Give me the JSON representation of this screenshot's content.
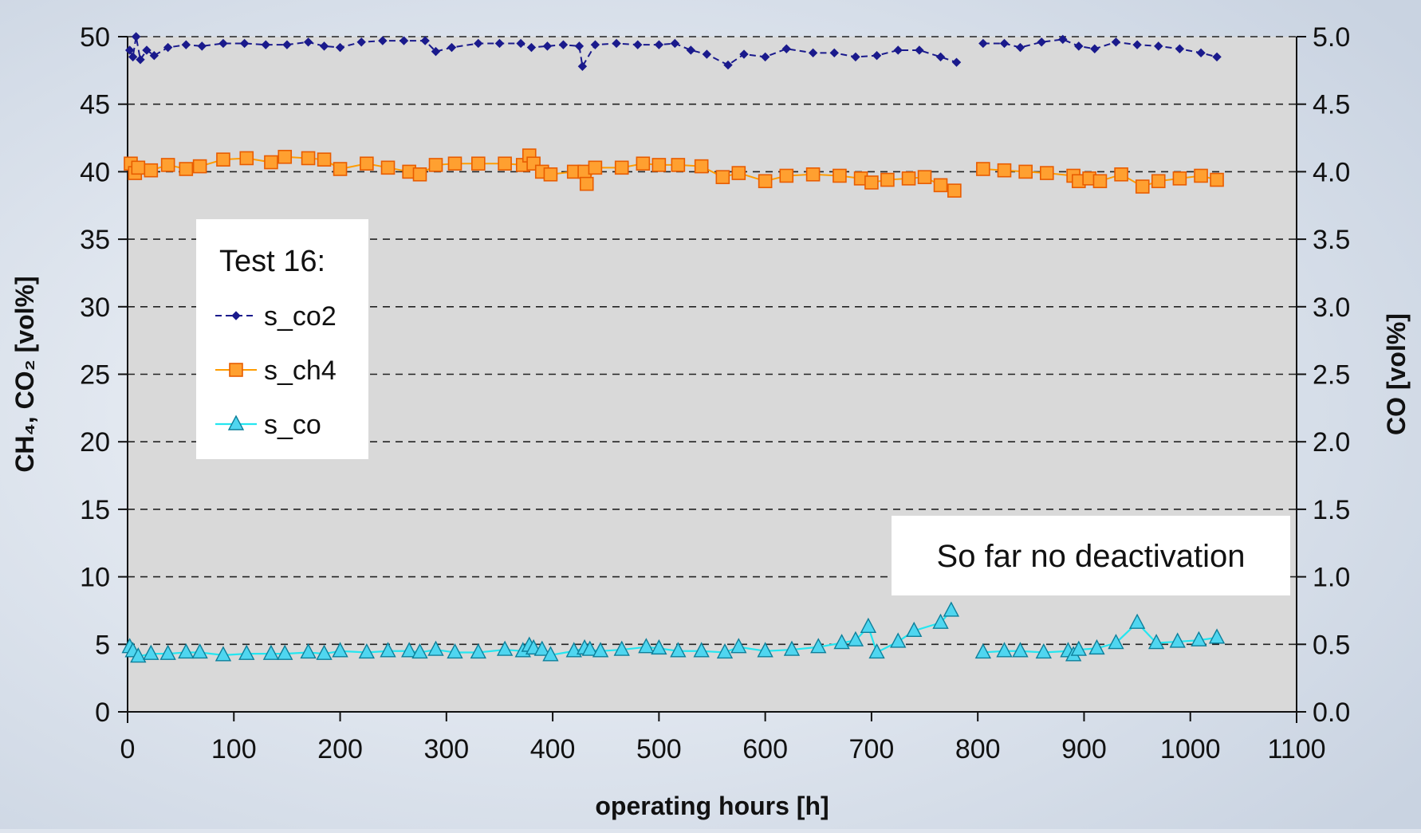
{
  "chart_data": {
    "type": "line",
    "xlabel": "operating hours [h]",
    "ylabel_left": "CH₄, CO₂ [vol%]",
    "ylabel_right": "CO [vol%]",
    "xlim": [
      0,
      1100
    ],
    "ylim_left": [
      0,
      50
    ],
    "ylim_right": [
      0.0,
      5.0
    ],
    "x_ticks": [
      "0",
      "100",
      "200",
      "300",
      "400",
      "500",
      "600",
      "700",
      "800",
      "900",
      "1000",
      "1100"
    ],
    "y_ticks_left": [
      "0",
      "5",
      "10",
      "15",
      "20",
      "25",
      "30",
      "35",
      "40",
      "45",
      "50"
    ],
    "y_ticks_right": [
      "0.0",
      "0.5",
      "1.0",
      "1.5",
      "2.0",
      "2.5",
      "3.0",
      "3.5",
      "4.0",
      "4.5",
      "5.0"
    ],
    "grid": true,
    "legend": {
      "title": "Test 16:",
      "placement": "upper-left",
      "entries": [
        "s_co2",
        "s_ch4",
        "s_co"
      ]
    },
    "annotation": "So far no deactivation",
    "colors": {
      "plot_background": "#d9d9d9",
      "s_co2": "#1a1a8c",
      "s_ch4": "#ff9c00",
      "s_ch4_fill": "#ffa030",
      "s_co": "#24e6f0",
      "s_co_fill": "#4fd6f0"
    },
    "series": [
      {
        "name": "s_co2",
        "axis": "left",
        "marker": "diamond",
        "segments": [
          [
            [
              2,
              49
            ],
            [
              5,
              48.5
            ],
            [
              8,
              50
            ],
            [
              12,
              48.3
            ],
            [
              18,
              49
            ],
            [
              25,
              48.6
            ],
            [
              38,
              49.2
            ],
            [
              55,
              49.4
            ],
            [
              70,
              49.3
            ],
            [
              90,
              49.5
            ],
            [
              110,
              49.5
            ],
            [
              130,
              49.4
            ],
            [
              150,
              49.4
            ],
            [
              170,
              49.6
            ],
            [
              185,
              49.3
            ],
            [
              200,
              49.2
            ],
            [
              220,
              49.6
            ],
            [
              240,
              49.7
            ],
            [
              260,
              49.7
            ],
            [
              280,
              49.7
            ],
            [
              290,
              48.9
            ],
            [
              305,
              49.2
            ],
            [
              330,
              49.5
            ],
            [
              350,
              49.5
            ],
            [
              370,
              49.5
            ],
            [
              380,
              49.2
            ],
            [
              395,
              49.3
            ],
            [
              410,
              49.4
            ],
            [
              425,
              49.3
            ],
            [
              428,
              47.8
            ],
            [
              440,
              49.4
            ],
            [
              460,
              49.5
            ],
            [
              480,
              49.4
            ],
            [
              500,
              49.4
            ],
            [
              515,
              49.5
            ],
            [
              530,
              49
            ],
            [
              545,
              48.7
            ],
            [
              565,
              47.9
            ],
            [
              580,
              48.7
            ],
            [
              600,
              48.5
            ],
            [
              620,
              49.1
            ],
            [
              645,
              48.8
            ],
            [
              665,
              48.8
            ],
            [
              685,
              48.5
            ],
            [
              705,
              48.6
            ],
            [
              725,
              49
            ],
            [
              745,
              49
            ],
            [
              765,
              48.5
            ],
            [
              780,
              48.1
            ]
          ],
          [
            [
              805,
              49.5
            ],
            [
              825,
              49.5
            ],
            [
              840,
              49.2
            ],
            [
              860,
              49.6
            ],
            [
              880,
              49.8
            ],
            [
              895,
              49.3
            ],
            [
              910,
              49.1
            ],
            [
              930,
              49.6
            ],
            [
              950,
              49.4
            ],
            [
              970,
              49.3
            ],
            [
              990,
              49.1
            ],
            [
              1010,
              48.8
            ],
            [
              1025,
              48.5
            ]
          ]
        ]
      },
      {
        "name": "s_ch4",
        "axis": "left",
        "marker": "square",
        "segments": [
          [
            [
              3,
              40.6
            ],
            [
              7,
              39.9
            ],
            [
              10,
              40.3
            ],
            [
              22,
              40.1
            ],
            [
              38,
              40.5
            ],
            [
              55,
              40.2
            ],
            [
              68,
              40.4
            ],
            [
              90,
              40.9
            ],
            [
              112,
              41
            ],
            [
              135,
              40.7
            ],
            [
              148,
              41.1
            ],
            [
              170,
              41
            ],
            [
              185,
              40.9
            ],
            [
              200,
              40.2
            ],
            [
              225,
              40.6
            ],
            [
              245,
              40.3
            ],
            [
              265,
              40
            ],
            [
              275,
              39.8
            ],
            [
              290,
              40.5
            ],
            [
              308,
              40.6
            ],
            [
              330,
              40.6
            ],
            [
              355,
              40.6
            ],
            [
              372,
              40.5
            ],
            [
              378,
              41.2
            ],
            [
              382,
              40.6
            ],
            [
              390,
              40
            ],
            [
              398,
              39.8
            ],
            [
              420,
              40
            ],
            [
              430,
              40
            ],
            [
              432,
              39.1
            ],
            [
              440,
              40.3
            ],
            [
              465,
              40.3
            ],
            [
              485,
              40.6
            ],
            [
              500,
              40.5
            ],
            [
              518,
              40.5
            ],
            [
              540,
              40.4
            ],
            [
              560,
              39.6
            ],
            [
              575,
              39.9
            ],
            [
              600,
              39.3
            ],
            [
              620,
              39.7
            ],
            [
              645,
              39.8
            ],
            [
              670,
              39.7
            ],
            [
              690,
              39.5
            ],
            [
              700,
              39.2
            ],
            [
              715,
              39.4
            ],
            [
              735,
              39.5
            ],
            [
              750,
              39.6
            ],
            [
              765,
              39
            ],
            [
              778,
              38.6
            ]
          ],
          [
            [
              805,
              40.2
            ],
            [
              825,
              40.1
            ],
            [
              845,
              40
            ],
            [
              865,
              39.9
            ],
            [
              890,
              39.7
            ],
            [
              895,
              39.3
            ],
            [
              905,
              39.5
            ],
            [
              915,
              39.3
            ],
            [
              935,
              39.8
            ],
            [
              955,
              38.9
            ],
            [
              970,
              39.3
            ],
            [
              990,
              39.5
            ],
            [
              1010,
              39.7
            ],
            [
              1025,
              39.4
            ]
          ]
        ]
      },
      {
        "name": "s_co",
        "axis": "right",
        "marker": "triangle",
        "segments": [
          [
            [
              2,
              0.48
            ],
            [
              5,
              0.45
            ],
            [
              10,
              0.41
            ],
            [
              22,
              0.43
            ],
            [
              38,
              0.43
            ],
            [
              55,
              0.44
            ],
            [
              68,
              0.44
            ],
            [
              90,
              0.42
            ],
            [
              112,
              0.43
            ],
            [
              135,
              0.43
            ],
            [
              148,
              0.43
            ],
            [
              170,
              0.44
            ],
            [
              185,
              0.43
            ],
            [
              200,
              0.45
            ],
            [
              225,
              0.44
            ],
            [
              245,
              0.45
            ],
            [
              265,
              0.45
            ],
            [
              275,
              0.44
            ],
            [
              290,
              0.46
            ],
            [
              308,
              0.44
            ],
            [
              330,
              0.44
            ],
            [
              355,
              0.46
            ],
            [
              372,
              0.45
            ],
            [
              378,
              0.49
            ],
            [
              382,
              0.47
            ],
            [
              390,
              0.46
            ],
            [
              398,
              0.42
            ],
            [
              420,
              0.45
            ],
            [
              430,
              0.47
            ],
            [
              435,
              0.46
            ],
            [
              445,
              0.45
            ],
            [
              465,
              0.46
            ],
            [
              488,
              0.48
            ],
            [
              500,
              0.47
            ],
            [
              518,
              0.45
            ],
            [
              540,
              0.45
            ],
            [
              562,
              0.44
            ],
            [
              575,
              0.48
            ],
            [
              600,
              0.45
            ],
            [
              625,
              0.46
            ],
            [
              650,
              0.48
            ],
            [
              672,
              0.51
            ],
            [
              685,
              0.53
            ],
            [
              697,
              0.63
            ],
            [
              705,
              0.44
            ],
            [
              725,
              0.52
            ],
            [
              740,
              0.6
            ],
            [
              765,
              0.66
            ],
            [
              775,
              0.75
            ]
          ],
          [
            [
              805,
              0.44
            ],
            [
              825,
              0.45
            ],
            [
              840,
              0.45
            ],
            [
              862,
              0.44
            ],
            [
              885,
              0.45
            ],
            [
              890,
              0.42
            ],
            [
              895,
              0.46
            ],
            [
              912,
              0.47
            ],
            [
              930,
              0.51
            ],
            [
              950,
              0.66
            ],
            [
              968,
              0.51
            ],
            [
              988,
              0.52
            ],
            [
              1008,
              0.53
            ],
            [
              1025,
              0.55
            ]
          ]
        ]
      }
    ]
  }
}
